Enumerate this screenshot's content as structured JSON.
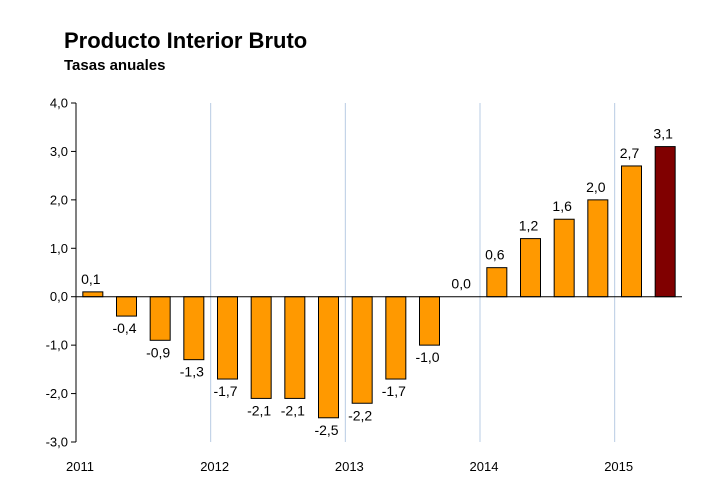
{
  "chart_data": {
    "type": "bar",
    "title": "Producto Interior Bruto",
    "subtitle": "Tasas anuales",
    "xlabel": "",
    "ylabel": "",
    "ylim": [
      -3,
      4
    ],
    "yticks": [
      4,
      3,
      2,
      1,
      0,
      -1,
      -2,
      -3
    ],
    "ytick_labels": [
      "4,0",
      "3,0",
      "2,0",
      "1,0",
      "0,0",
      "-1,0",
      "-2,0",
      "-3,0"
    ],
    "year_labels": [
      "2011",
      "2012",
      "2013",
      "2014",
      "2015"
    ],
    "year_label_after_bar_index": [
      -1,
      3,
      7,
      11,
      15
    ],
    "values": [
      0.1,
      -0.4,
      -0.9,
      -1.3,
      -1.7,
      -2.1,
      -2.1,
      -2.5,
      -2.2,
      -1.7,
      -1.0,
      0.0,
      0.6,
      1.2,
      1.6,
      2.0,
      2.7,
      3.1
    ],
    "value_labels": [
      "0,1",
      "-0,4",
      "-0,9",
      "-1,3",
      "-1,7",
      "-2,1",
      "-2,1",
      "-2,5",
      "-2,2",
      "-1,7",
      "-1,0",
      "0,0",
      "0,6",
      "1,2",
      "1,6",
      "2,0",
      "2,7",
      "3,1"
    ],
    "highlight_index": 17,
    "grid": "vertical lines at year boundaries",
    "colors": {
      "bar": "#FF9900",
      "highlight": "#800000",
      "bar_edge": "#000000",
      "grid": "#B8CCE4",
      "axis": "#000000"
    }
  }
}
